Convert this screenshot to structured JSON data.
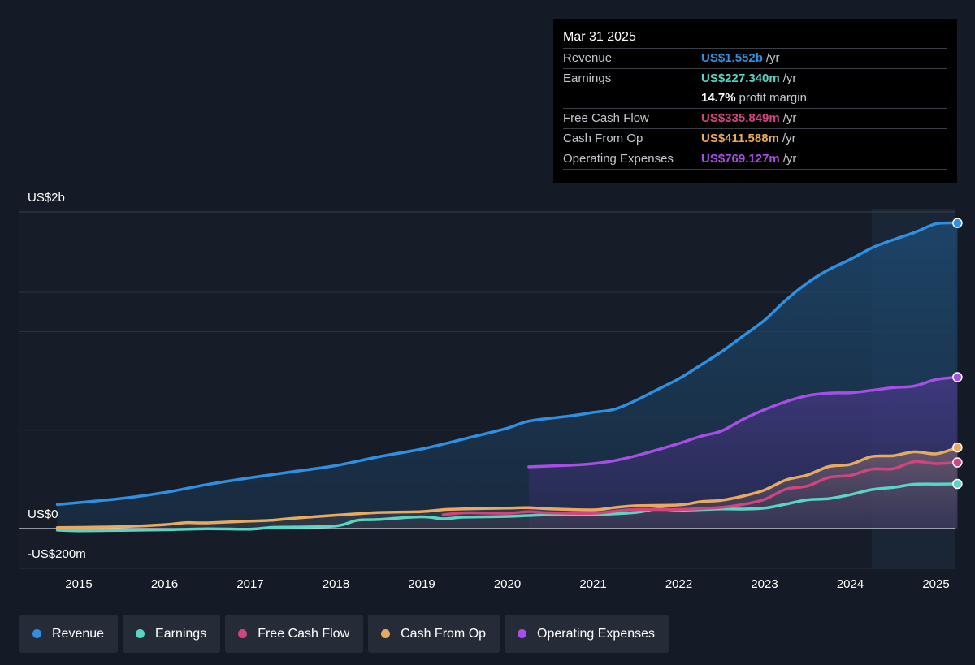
{
  "tooltip": {
    "date": "Mar 31 2025",
    "rows": [
      {
        "label": "Revenue",
        "value": "US$1.552b",
        "unit": "/yr",
        "color": "#2f8fe0"
      },
      {
        "label": "Earnings",
        "value": "US$227.340m",
        "unit": "/yr",
        "color": "#58d5c5"
      },
      {
        "label": "",
        "value": "14.7%",
        "unit": "profit margin",
        "color": "#ffffff"
      },
      {
        "label": "Free Cash Flow",
        "value": "US$335.849m",
        "unit": "/yr",
        "color": "#d0457e"
      },
      {
        "label": "Cash From Op",
        "value": "US$411.588m",
        "unit": "/yr",
        "color": "#e8a960"
      },
      {
        "label": "Operating Expenses",
        "value": "US$769.127m",
        "unit": "/yr",
        "color": "#a64ee6"
      }
    ]
  },
  "legend": [
    {
      "label": "Revenue",
      "color": "#2f8fe0"
    },
    {
      "label": "Earnings",
      "color": "#58d5c5"
    },
    {
      "label": "Free Cash Flow",
      "color": "#d0457e"
    },
    {
      "label": "Cash From Op",
      "color": "#e8a960"
    },
    {
      "label": "Operating Expenses",
      "color": "#a64ee6"
    }
  ],
  "chart_data": {
    "type": "area",
    "y_labels": [
      "US$2b",
      "US$0",
      "-US$200m"
    ],
    "x_ticks": [
      "2015",
      "2016",
      "2017",
      "2018",
      "2019",
      "2020",
      "2021",
      "2022",
      "2023",
      "2024",
      "2025"
    ],
    "ylim": [
      -200,
      1600
    ],
    "units": "US$ millions",
    "grid": true,
    "series": [
      {
        "name": "Revenue",
        "color": "#2f8fe0",
        "x": [
          2014.75,
          2015.0,
          2015.5,
          2016.0,
          2016.5,
          2017.0,
          2017.5,
          2018.0,
          2018.5,
          2019.0,
          2019.5,
          2020.0,
          2020.25,
          2020.75,
          2021.0,
          2021.25,
          2021.5,
          2021.75,
          2022.0,
          2022.25,
          2022.5,
          2022.75,
          2023.0,
          2023.25,
          2023.5,
          2023.75,
          2024.0,
          2024.25,
          2024.5,
          2024.75,
          2025.0,
          2025.25
        ],
        "y": [
          122,
          132,
          153,
          183,
          224,
          258,
          289,
          320,
          365,
          404,
          456,
          510,
          546,
          573,
          590,
          606,
          651,
          706,
          761,
          829,
          899,
          978,
          1058,
          1161,
          1248,
          1315,
          1367,
          1425,
          1467,
          1504,
          1548,
          1552
        ]
      },
      {
        "name": "Earnings",
        "color": "#58d5c5",
        "x": [
          2014.75,
          2015.0,
          2015.5,
          2016.0,
          2016.5,
          2017.0,
          2017.25,
          2017.5,
          2018.0,
          2018.25,
          2018.5,
          2019.0,
          2019.25,
          2019.5,
          2020.0,
          2020.5,
          2021.0,
          2021.5,
          2021.75,
          2022.0,
          2022.5,
          2022.75,
          2023.0,
          2023.25,
          2023.5,
          2023.75,
          2024.0,
          2024.25,
          2024.5,
          2024.75,
          2025.0,
          2025.25
        ],
        "y": [
          -8,
          -11,
          -9,
          -6,
          -1,
          -3,
          6,
          8,
          13,
          42,
          46,
          60,
          50,
          58,
          62,
          70,
          71,
          82,
          100,
          93,
          100,
          99,
          104,
          124,
          146,
          152,
          172,
          198,
          209,
          225,
          226,
          227
        ]
      },
      {
        "name": "Free Cash Flow",
        "color": "#d0457e",
        "x": [
          2019.25,
          2019.5,
          2020.0,
          2020.25,
          2020.5,
          2021.0,
          2021.25,
          2021.5,
          2022.0,
          2022.5,
          2022.75,
          2023.0,
          2023.25,
          2023.5,
          2023.75,
          2024.0,
          2024.25,
          2024.5,
          2024.75,
          2025.0,
          2025.25
        ],
        "y": [
          70,
          80,
          78,
          86,
          80,
          78,
          88,
          97,
          97,
          108,
          123,
          148,
          200,
          216,
          260,
          270,
          302,
          304,
          340,
          330,
          336
        ]
      },
      {
        "name": "Cash From Op",
        "color": "#e8a960",
        "x": [
          2014.75,
          2015.0,
          2015.5,
          2016.0,
          2016.25,
          2016.5,
          2017.0,
          2017.25,
          2017.5,
          2018.0,
          2018.25,
          2018.5,
          2019.0,
          2019.25,
          2019.5,
          2020.0,
          2020.25,
          2020.5,
          2021.0,
          2021.25,
          2021.5,
          2022.0,
          2022.25,
          2022.5,
          2022.75,
          2023.0,
          2023.25,
          2023.5,
          2023.75,
          2024.0,
          2024.25,
          2024.5,
          2024.75,
          2025.0,
          2025.25
        ],
        "y": [
          5,
          6,
          10,
          20,
          30,
          29,
          38,
          42,
          52,
          68,
          75,
          82,
          86,
          96,
          100,
          104,
          106,
          100,
          95,
          107,
          116,
          120,
          136,
          144,
          165,
          196,
          247,
          272,
          315,
          326,
          366,
          370,
          390,
          380,
          412
        ]
      },
      {
        "name": "Operating Expenses",
        "color": "#a64ee6",
        "x": [
          2020.25,
          2020.75,
          2021.0,
          2021.25,
          2021.5,
          2021.75,
          2022.0,
          2022.25,
          2022.5,
          2022.75,
          2023.0,
          2023.25,
          2023.5,
          2023.75,
          2024.0,
          2024.25,
          2024.5,
          2024.75,
          2025.0,
          2025.25
        ],
        "y": [
          314,
          322,
          330,
          345,
          370,
          400,
          432,
          468,
          496,
          555,
          604,
          645,
          675,
          688,
          690,
          702,
          716,
          724,
          757,
          769
        ]
      }
    ]
  }
}
